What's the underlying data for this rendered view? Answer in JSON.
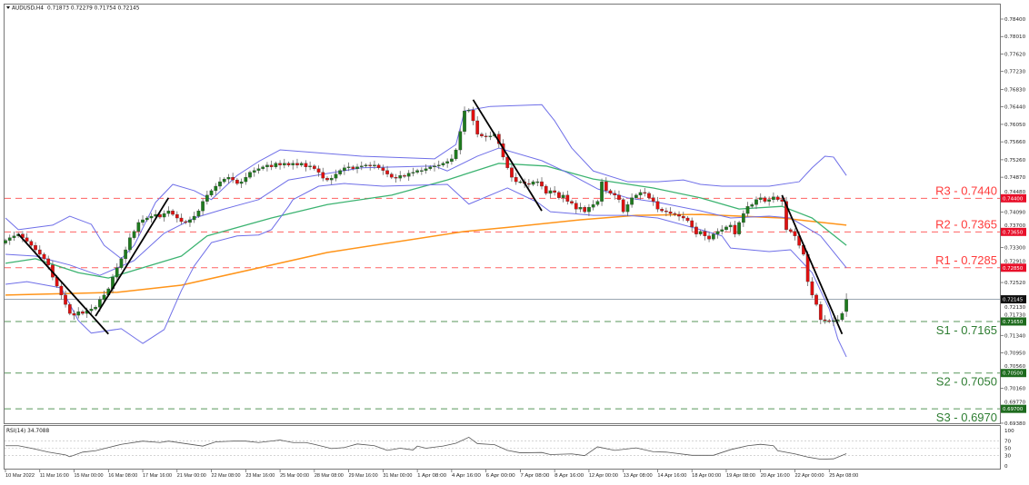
{
  "header": {
    "symbol": "AUDUSD,H4",
    "ohlc": "0.71873 0.72279 0.71754 0.72145",
    "menu_icon": "triangle-down-icon"
  },
  "chart_data": {
    "type": "candlestick",
    "symbol": "AUDUSD",
    "timeframe": "H4",
    "ylim": [
      0.6938,
      0.784
    ],
    "y_ticks": [
      "0.78400",
      "0.78010",
      "0.77620",
      "0.77230",
      "0.76830",
      "0.76440",
      "0.76050",
      "0.75660",
      "0.75260",
      "0.74870",
      "0.74480",
      "0.74090",
      "0.73700",
      "0.73300",
      "0.72910",
      "0.72520",
      "0.72130",
      "0.71730",
      "0.71340",
      "0.70950",
      "0.70560",
      "0.70160",
      "0.69770",
      "0.69380"
    ],
    "x_ticks": [
      "10 Mar 2022",
      "11 Mar 16:00",
      "15 Mar 00:00",
      "16 Mar 08:00",
      "17 Mar 16:00",
      "21 Mar 00:00",
      "22 Mar 08:00",
      "23 Mar 16:00",
      "25 Mar 00:00",
      "28 Mar 08:00",
      "29 Mar 16:00",
      "31 Mar 00:00",
      "1 Apr 08:00",
      "4 Apr 16:00",
      "6 Apr 00:00",
      "7 Apr 08:00",
      "8 Apr 16:00",
      "12 Apr 00:00",
      "13 Apr 08:00",
      "14 Apr 16:00",
      "18 Apr 00:00",
      "19 Apr 08:00",
      "20 Apr 16:00",
      "22 Apr 00:00",
      "25 Apr 08:00"
    ],
    "x_tick_every_bars": 8,
    "closes": [
      0.7346,
      0.7352,
      0.7356,
      0.736,
      0.7352,
      0.7344,
      0.7335,
      0.7325,
      0.7315,
      0.7305,
      0.7291,
      0.7264,
      0.7244,
      0.7224,
      0.7203,
      0.7183,
      0.7179,
      0.7187,
      0.7183,
      0.7189,
      0.7193,
      0.7197,
      0.7214,
      0.7224,
      0.7238,
      0.7264,
      0.7285,
      0.7305,
      0.7325,
      0.7352,
      0.7366,
      0.7386,
      0.7392,
      0.7396,
      0.74,
      0.7404,
      0.7398,
      0.7406,
      0.7412,
      0.7404,
      0.7396,
      0.7388,
      0.7386,
      0.7392,
      0.74,
      0.7412,
      0.7433,
      0.7447,
      0.7457,
      0.7467,
      0.7477,
      0.7483,
      0.7487,
      0.7481,
      0.7473,
      0.7477,
      0.7487,
      0.7498,
      0.7502,
      0.7506,
      0.751,
      0.7514,
      0.751,
      0.7518,
      0.7514,
      0.7518,
      0.7514,
      0.7518,
      0.7514,
      0.7518,
      0.751,
      0.7512,
      0.7506,
      0.7498,
      0.7485,
      0.7481,
      0.7485,
      0.7494,
      0.7502,
      0.7508,
      0.751,
      0.7506,
      0.751,
      0.7512,
      0.7514,
      0.7512,
      0.7514,
      0.7508,
      0.7502,
      0.7494,
      0.7487,
      0.7485,
      0.7491,
      0.7489,
      0.7496,
      0.7498,
      0.7502,
      0.7502,
      0.7506,
      0.751,
      0.7512,
      0.7514,
      0.7518,
      0.7522,
      0.7528,
      0.7548,
      0.7589,
      0.7635,
      0.7637,
      0.7613,
      0.7583,
      0.7579,
      0.7577,
      0.7579,
      0.7583,
      0.7562,
      0.7532,
      0.7508,
      0.7487,
      0.7477,
      0.7477,
      0.7473,
      0.7471,
      0.7477,
      0.7477,
      0.7467,
      0.7451,
      0.7457,
      0.7453,
      0.7441,
      0.7447,
      0.7433,
      0.7429,
      0.7416,
      0.742,
      0.741,
      0.742,
      0.7426,
      0.7433,
      0.7477,
      0.7457,
      0.7451,
      0.7447,
      0.7437,
      0.741,
      0.7426,
      0.7441,
      0.7447,
      0.7453,
      0.7451,
      0.7441,
      0.7433,
      0.7416,
      0.7412,
      0.741,
      0.7406,
      0.7404,
      0.74,
      0.7396,
      0.739,
      0.7376,
      0.736,
      0.7366,
      0.7356,
      0.7349,
      0.736,
      0.7366,
      0.737,
      0.7376,
      0.738,
      0.736,
      0.7386,
      0.7406,
      0.7422,
      0.7426,
      0.7437,
      0.7441,
      0.7433,
      0.7437,
      0.7443,
      0.7437,
      0.7433,
      0.737,
      0.7366,
      0.7356,
      0.7335,
      0.7315,
      0.7254,
      0.7224,
      0.7203,
      0.7169,
      0.7167,
      0.7165,
      0.7167,
      0.7169,
      0.7183,
      0.72145
    ],
    "first_open": 0.734,
    "last_bar": {
      "open": 0.71873,
      "high": 0.72279,
      "low": 0.71754,
      "close": 0.72145
    },
    "indicators": {
      "bollinger_upper": [
        [
          0,
          0.7396
        ],
        [
          3,
          0.737
        ],
        [
          11,
          0.738
        ],
        [
          15,
          0.74
        ],
        [
          20,
          0.7382
        ],
        [
          23,
          0.7335
        ],
        [
          27,
          0.7305
        ],
        [
          30,
          0.7335
        ],
        [
          35,
          0.7431
        ],
        [
          39,
          0.7471
        ],
        [
          44,
          0.7457
        ],
        [
          48,
          0.7437
        ],
        [
          54,
          0.7491
        ],
        [
          59,
          0.7522
        ],
        [
          64,
          0.7548
        ],
        [
          83,
          0.7534
        ],
        [
          100,
          0.7528
        ],
        [
          105,
          0.756
        ],
        [
          107,
          0.7635
        ],
        [
          113,
          0.7645
        ],
        [
          125,
          0.7649
        ],
        [
          128,
          0.7613
        ],
        [
          132,
          0.7552
        ],
        [
          137,
          0.7501
        ],
        [
          145,
          0.7477
        ],
        [
          152,
          0.7477
        ],
        [
          158,
          0.7481
        ],
        [
          162,
          0.7471
        ],
        [
          167,
          0.7467
        ],
        [
          178,
          0.7467
        ],
        [
          185,
          0.7477
        ],
        [
          188,
          0.7508
        ],
        [
          191,
          0.7534
        ],
        [
          193,
          0.7532
        ],
        [
          196,
          0.7491
        ]
      ],
      "bollinger_middle": [
        [
          0,
          0.7315
        ],
        [
          7,
          0.7311
        ],
        [
          15,
          0.7291
        ],
        [
          20,
          0.7274
        ],
        [
          22,
          0.7268
        ],
        [
          30,
          0.7301
        ],
        [
          37,
          0.7362
        ],
        [
          44,
          0.7396
        ],
        [
          51,
          0.7416
        ],
        [
          59,
          0.7437
        ],
        [
          66,
          0.7481
        ],
        [
          83,
          0.7508
        ],
        [
          100,
          0.7512
        ],
        [
          103,
          0.7501
        ],
        [
          110,
          0.7534
        ],
        [
          115,
          0.7552
        ],
        [
          125,
          0.7524
        ],
        [
          131,
          0.7497
        ],
        [
          138,
          0.7461
        ],
        [
          145,
          0.7441
        ],
        [
          152,
          0.7431
        ],
        [
          162,
          0.7412
        ],
        [
          169,
          0.7396
        ],
        [
          178,
          0.74
        ],
        [
          183,
          0.7396
        ],
        [
          190,
          0.7356
        ],
        [
          196,
          0.7285
        ]
      ],
      "bollinger_lower": [
        [
          0,
          0.7248
        ],
        [
          5,
          0.7254
        ],
        [
          13,
          0.724
        ],
        [
          17,
          0.7167
        ],
        [
          20,
          0.7139
        ],
        [
          27,
          0.7149
        ],
        [
          32,
          0.7116
        ],
        [
          37,
          0.7147
        ],
        [
          41,
          0.7234
        ],
        [
          44,
          0.7289
        ],
        [
          48,
          0.7341
        ],
        [
          54,
          0.7356
        ],
        [
          59,
          0.7358
        ],
        [
          62,
          0.737
        ],
        [
          66,
          0.7422
        ],
        [
          67,
          0.7437
        ],
        [
          73,
          0.7467
        ],
        [
          79,
          0.7473
        ],
        [
          88,
          0.7467
        ],
        [
          103,
          0.7471
        ],
        [
          108,
          0.7427
        ],
        [
          117,
          0.7463
        ],
        [
          124,
          0.7431
        ],
        [
          127,
          0.741
        ],
        [
          137,
          0.7402
        ],
        [
          145,
          0.7402
        ],
        [
          152,
          0.7396
        ],
        [
          162,
          0.737
        ],
        [
          167,
          0.7356
        ],
        [
          169,
          0.7329
        ],
        [
          178,
          0.7321
        ],
        [
          183,
          0.7325
        ],
        [
          188,
          0.7274
        ],
        [
          192,
          0.7193
        ],
        [
          194,
          0.7126
        ],
        [
          196,
          0.7086
        ]
      ],
      "ma_green": [
        [
          0,
          0.7295
        ],
        [
          7,
          0.7305
        ],
        [
          17,
          0.7274
        ],
        [
          24,
          0.7262
        ],
        [
          41,
          0.7311
        ],
        [
          47,
          0.7356
        ],
        [
          62,
          0.7396
        ],
        [
          75,
          0.7426
        ],
        [
          90,
          0.7447
        ],
        [
          103,
          0.7481
        ],
        [
          115,
          0.7518
        ],
        [
          126,
          0.7512
        ],
        [
          137,
          0.7483
        ],
        [
          151,
          0.7463
        ],
        [
          162,
          0.7441
        ],
        [
          171,
          0.7416
        ],
        [
          181,
          0.7422
        ],
        [
          188,
          0.7396
        ],
        [
          196,
          0.7335
        ]
      ],
      "ma_orange": [
        [
          0,
          0.7224
        ],
        [
          26,
          0.723
        ],
        [
          41,
          0.7246
        ],
        [
          75,
          0.7319
        ],
        [
          107,
          0.7366
        ],
        [
          117,
          0.7375
        ],
        [
          134,
          0.7392
        ],
        [
          147,
          0.7402
        ],
        [
          162,
          0.7404
        ],
        [
          181,
          0.7396
        ],
        [
          196,
          0.738
        ]
      ]
    },
    "trendlines": [
      [
        [
          3,
          0.736
        ],
        [
          24,
          0.7137
        ]
      ],
      [
        [
          21,
          0.7177
        ],
        [
          38,
          0.7441
        ]
      ],
      [
        [
          109,
          0.766
        ],
        [
          125,
          0.7412
        ]
      ],
      [
        [
          181,
          0.7447
        ],
        [
          195,
          0.7137
        ]
      ]
    ],
    "levels": [
      {
        "label": "R3 - 0.7440",
        "price": 0.744,
        "tag": "0.74400",
        "kind": "resistance"
      },
      {
        "label": "R2 - 0.7365",
        "price": 0.7365,
        "tag": "0.73650",
        "kind": "resistance"
      },
      {
        "label": "R1 - 0.7285",
        "price": 0.7285,
        "tag": "0.72850",
        "kind": "resistance"
      },
      {
        "label": "S1 - 0.7165",
        "price": 0.7165,
        "tag": "0.71650",
        "kind": "support"
      },
      {
        "label": "S2 - 0.7050",
        "price": 0.705,
        "tag": "0.70500",
        "kind": "support"
      },
      {
        "label": "S3 - 0.6970",
        "price": 0.697,
        "tag": "0.69700",
        "kind": "support"
      }
    ],
    "current_price": {
      "price": 0.72145,
      "tag": "0.72145"
    },
    "rsi": {
      "label": "RSI(14) 34.7088",
      "ylim": [
        0,
        100
      ],
      "ticks": [
        "100",
        "70",
        "50",
        "30",
        "0"
      ],
      "levels": [
        70,
        50,
        30
      ],
      "values": [
        [
          0,
          57
        ],
        [
          3,
          57
        ],
        [
          6,
          50
        ],
        [
          10,
          39
        ],
        [
          14,
          31
        ],
        [
          15,
          26
        ],
        [
          18,
          39
        ],
        [
          21,
          43
        ],
        [
          24,
          52
        ],
        [
          27,
          61
        ],
        [
          32,
          70
        ],
        [
          36,
          66
        ],
        [
          38,
          70
        ],
        [
          42,
          63
        ],
        [
          46,
          56
        ],
        [
          49,
          68
        ],
        [
          53,
          70
        ],
        [
          56,
          70
        ],
        [
          59,
          66
        ],
        [
          64,
          73
        ],
        [
          67,
          66
        ],
        [
          70,
          66
        ],
        [
          72,
          61
        ],
        [
          76,
          49
        ],
        [
          79,
          52
        ],
        [
          82,
          62
        ],
        [
          86,
          57
        ],
        [
          89,
          44
        ],
        [
          92,
          50
        ],
        [
          95,
          45
        ],
        [
          96,
          56
        ],
        [
          98,
          50
        ],
        [
          102,
          56
        ],
        [
          105,
          64
        ],
        [
          108,
          81
        ],
        [
          110,
          63
        ],
        [
          114,
          60
        ],
        [
          117,
          44
        ],
        [
          120,
          37
        ],
        [
          125,
          38
        ],
        [
          127,
          32
        ],
        [
          132,
          34
        ],
        [
          135,
          29
        ],
        [
          138,
          54
        ],
        [
          142,
          44
        ],
        [
          147,
          51
        ],
        [
          151,
          40
        ],
        [
          154,
          39
        ],
        [
          160,
          30
        ],
        [
          165,
          30
        ],
        [
          169,
          46
        ],
        [
          173,
          57
        ],
        [
          176,
          61
        ],
        [
          179,
          57
        ],
        [
          180,
          43
        ],
        [
          184,
          34
        ],
        [
          187,
          25
        ],
        [
          190,
          19
        ],
        [
          193,
          20
        ],
        [
          196,
          34.7
        ]
      ]
    },
    "colors": {
      "up": "#1e7b1e",
      "down": "#e01010",
      "bands": "#6f6fe8",
      "ma_green": "#3cb371",
      "ma_orange": "#ff9419",
      "resistance": "#ff3b3b",
      "support": "#2e7d32",
      "current": "#9aa6b2"
    },
    "grid": false
  }
}
